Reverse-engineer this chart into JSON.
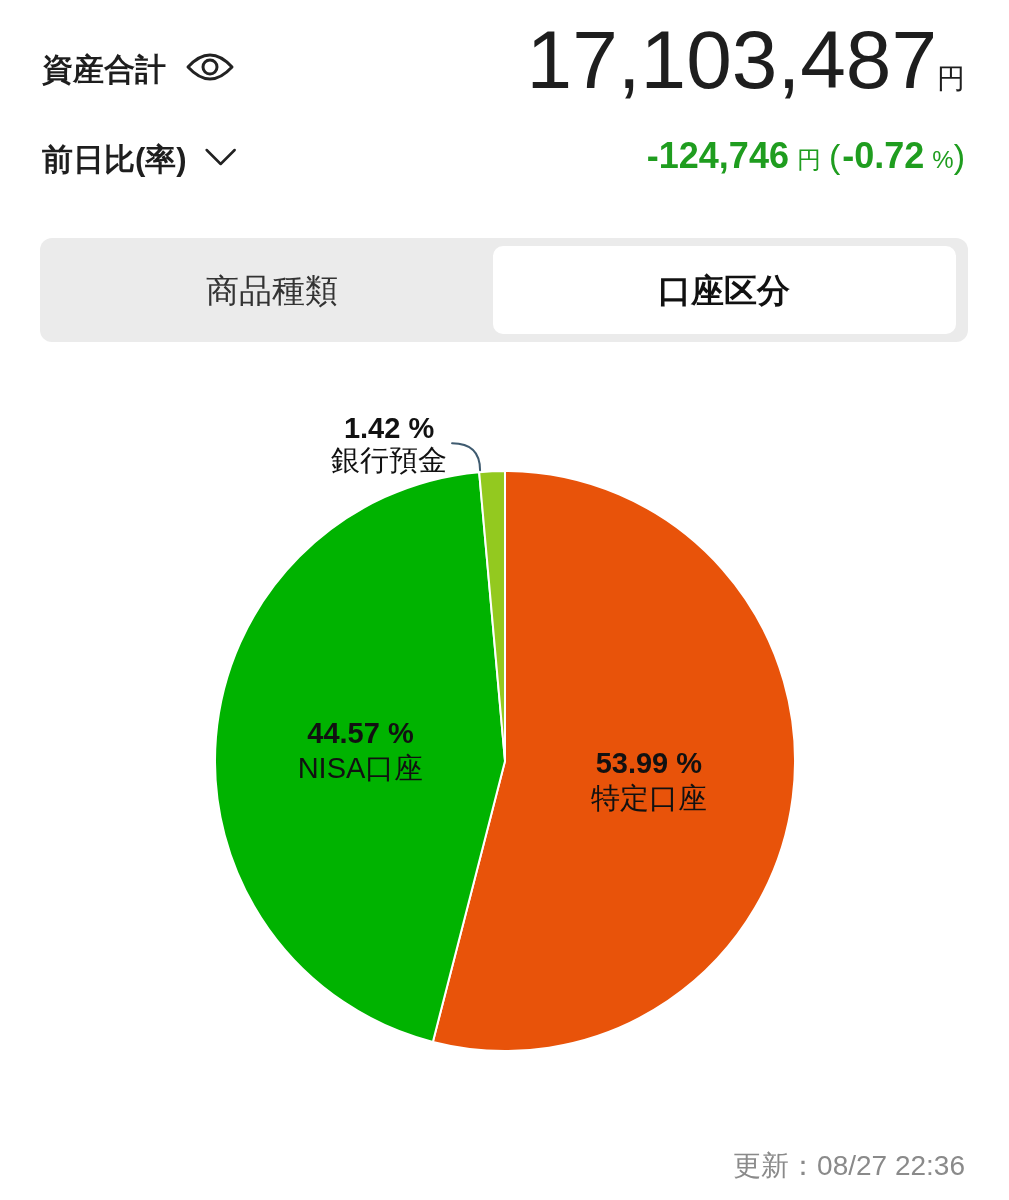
{
  "chart_data": {
    "type": "pie",
    "title": "資産合計",
    "categories": [
      "特定口座",
      "NISA口座",
      "銀行預金"
    ],
    "values": [
      53.99,
      44.57,
      1.42
    ],
    "colors": [
      "#e8530a",
      "#00b300",
      "#93c91f"
    ],
    "value_labels": [
      "53.99 %",
      "44.57 %",
      "1.42 %"
    ],
    "annotations": [
      "17,103,487",
      "円",
      "前日比(率)",
      "-124,746",
      "円",
      "(",
      "-0.72",
      "%",
      ")",
      "商品種類",
      "口座区分",
      "更新：08/27 22:36"
    ]
  }
}
